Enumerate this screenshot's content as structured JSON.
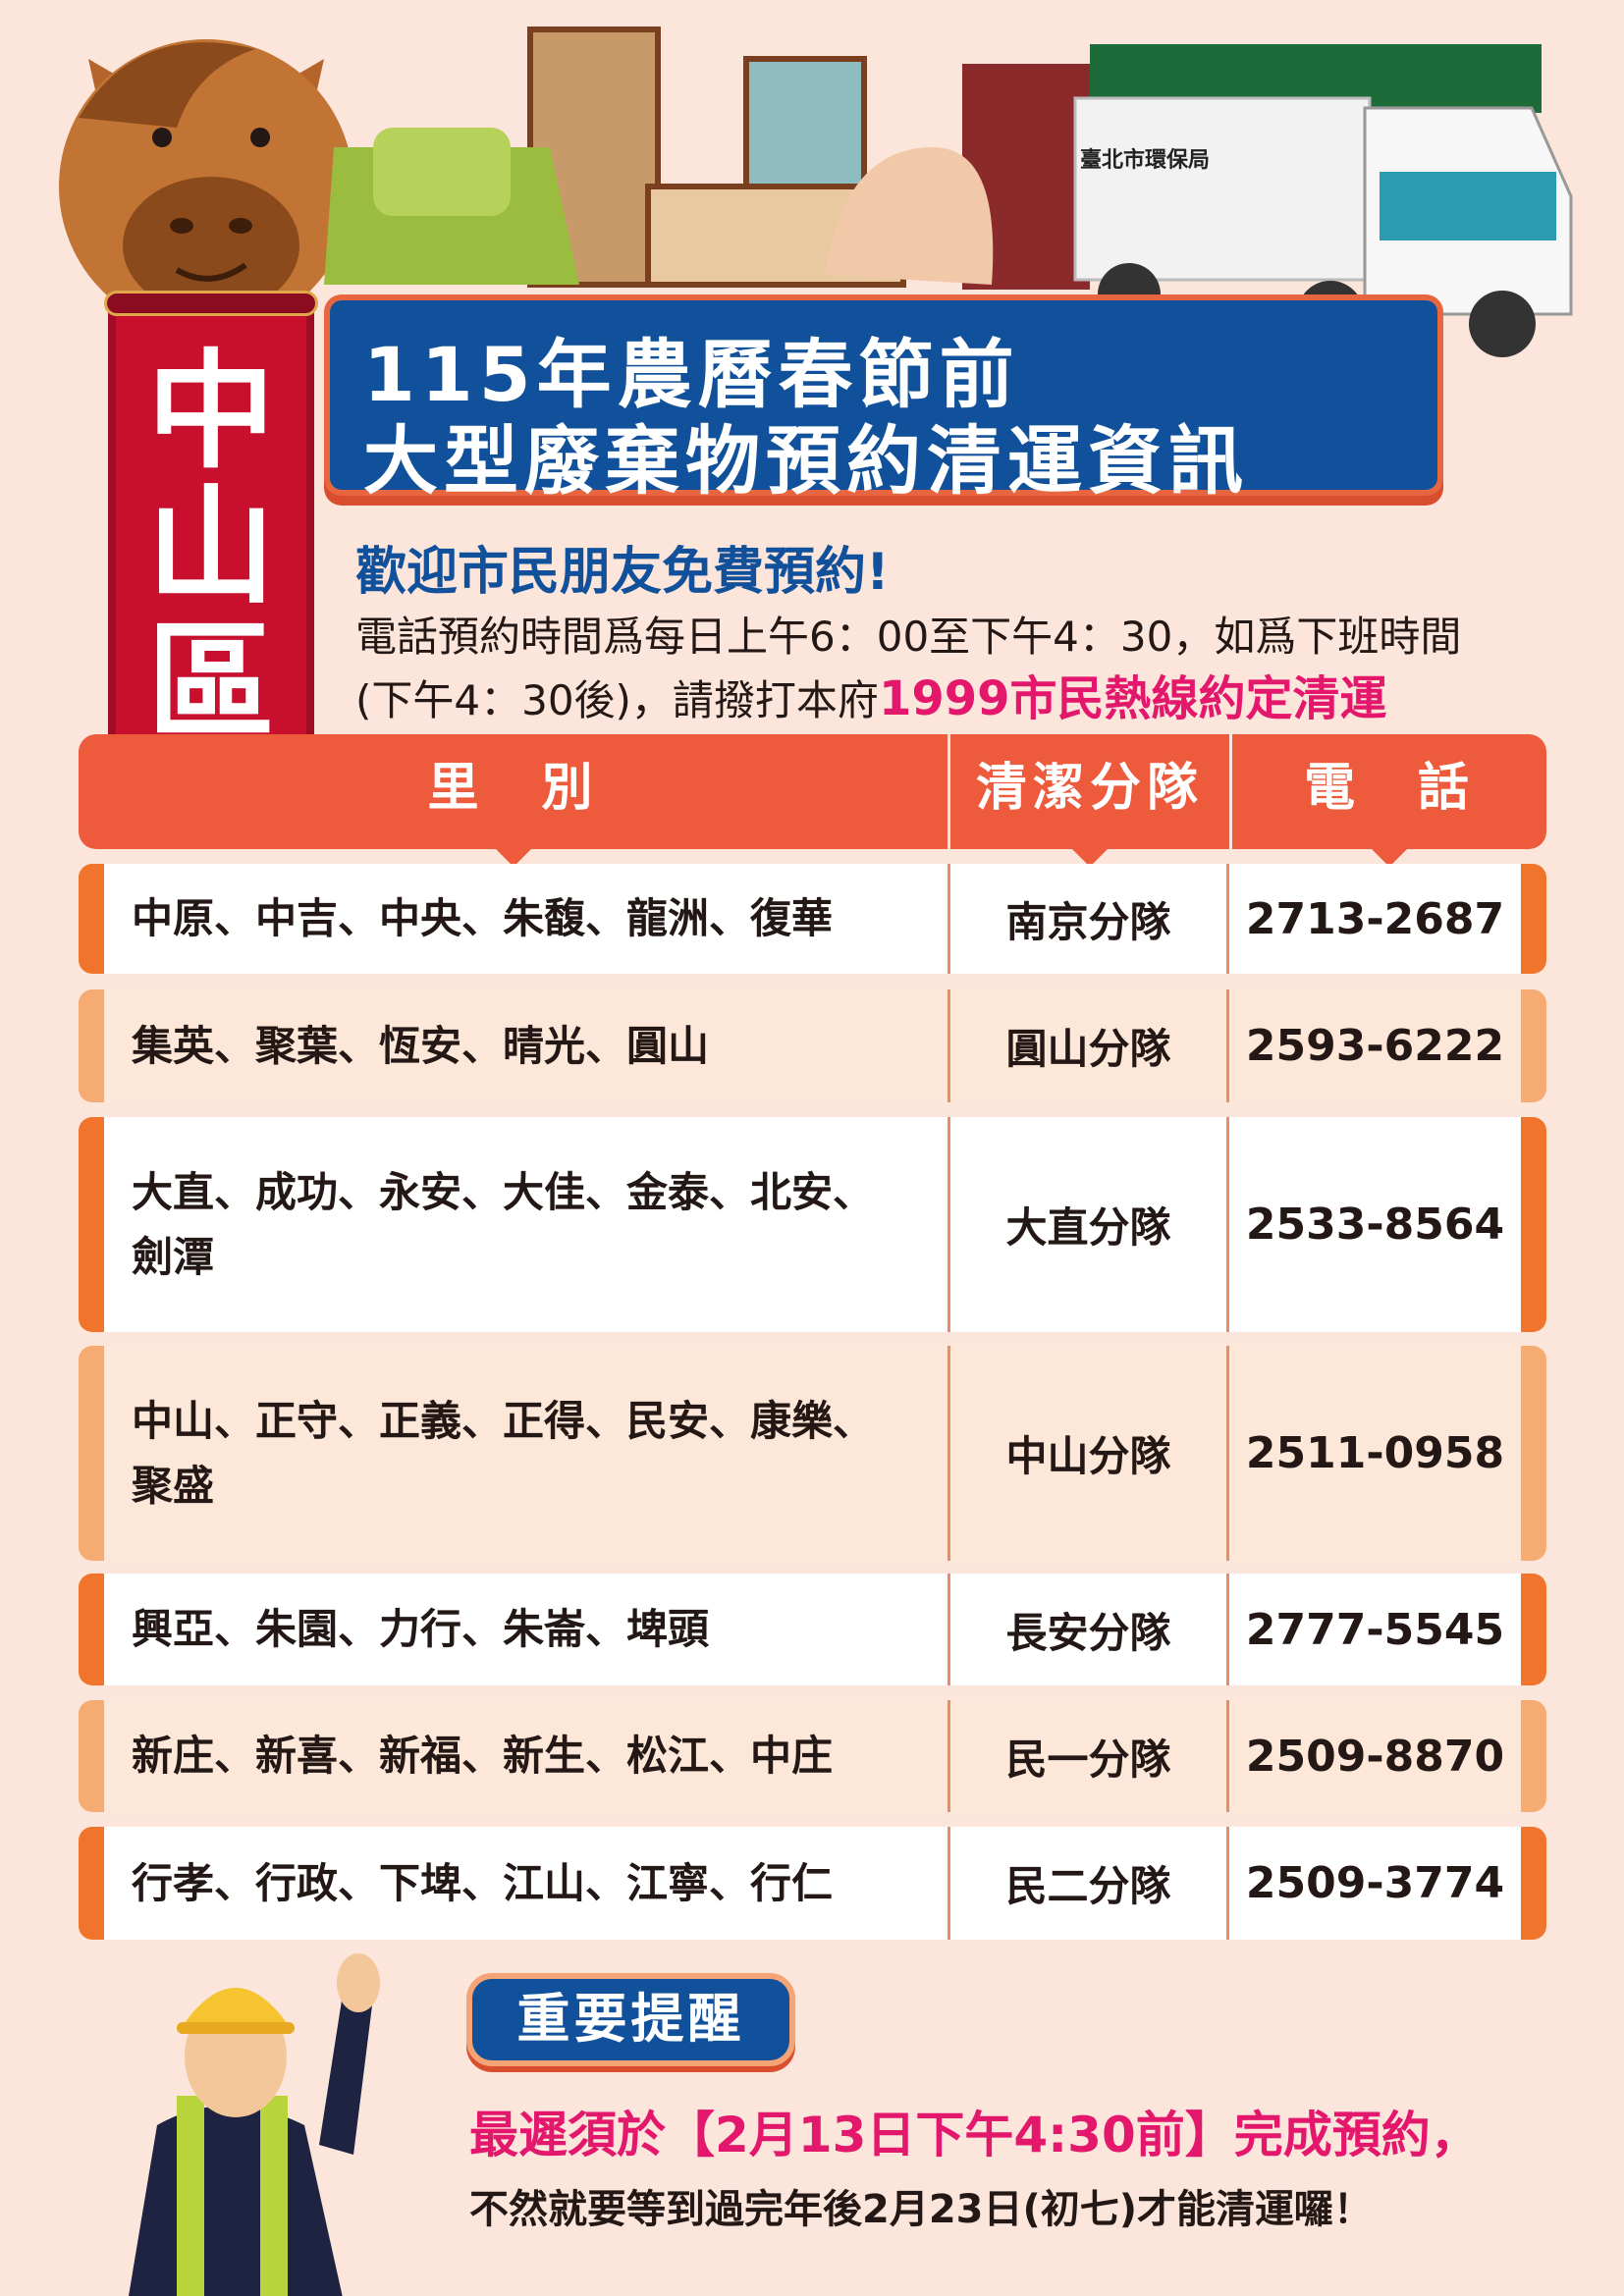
{
  "district": [
    "中",
    "山",
    "區"
  ],
  "title": {
    "line1": "115年農曆春節前",
    "line2": "大型廢棄物預約清運資訊"
  },
  "truck_text": "臺北市環保局",
  "welcome": "歡迎市民朋友免費預約!",
  "info": {
    "line1": "電話預約時間爲每日上午6：00至下午4：30，如爲下班時間",
    "line2_prefix": "(下午4：30後)，請撥打本府",
    "hotline": "1999市民熱線約定清運"
  },
  "table": {
    "headers": [
      "里　別",
      "清潔分隊",
      "電　話"
    ],
    "rows": [
      {
        "villages": "中原、中吉、中央、朱馥、龍洲、復華",
        "team": "南京分隊",
        "phone": "2713-2687"
      },
      {
        "villages": "集英、聚葉、恆安、晴光、圓山",
        "team": "圓山分隊",
        "phone": "2593-6222"
      },
      {
        "villages": "大直、成功、永安、大佳、金泰、北安、劍潭",
        "team": "大直分隊",
        "phone": "2533-8564"
      },
      {
        "villages": "中山、正守、正義、正得、民安、康樂、聚盛",
        "team": "中山分隊",
        "phone": "2511-0958"
      },
      {
        "villages": "興亞、朱園、力行、朱崙、埤頭",
        "team": "長安分隊",
        "phone": "2777-5545"
      },
      {
        "villages": "新庄、新喜、新福、新生、松江、中庄",
        "team": "民一分隊",
        "phone": "2509-8870"
      },
      {
        "villages": "行孝、行政、下埤、江山、江寧、行仁",
        "team": "民二分隊",
        "phone": "2509-3774"
      }
    ]
  },
  "reminder": {
    "badge": "重要提醒",
    "deadline": "最遲須於【2月13日下午4:30前】完成預約，",
    "note": "不然就要等到過完年後2月23日(初七)才能清運囉！"
  },
  "colors": {
    "background": "#fce6db",
    "blue": "#11519b",
    "header": "#ed5b3c",
    "hotline": "#e3186d"
  }
}
